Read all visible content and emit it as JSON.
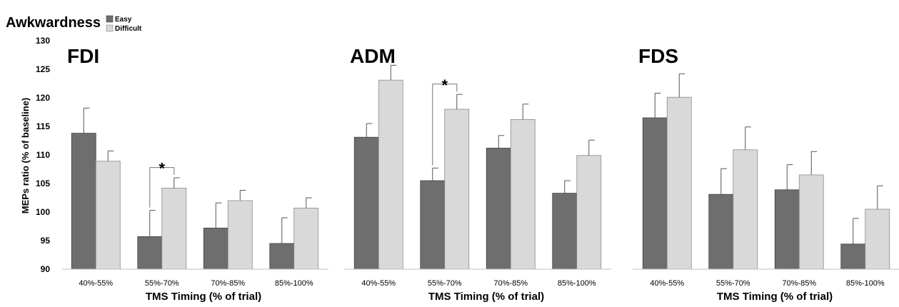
{
  "legend": {
    "title": "Awkwardness",
    "items": [
      {
        "label": "Easy",
        "color": "#6e6e6e"
      },
      {
        "label": "Difficult",
        "color": "#d9d9d9"
      }
    ]
  },
  "chart_data": {
    "type": "bar",
    "ylabel": "MEPs ratio (% of baseline)",
    "ylim": [
      90,
      130
    ],
    "yticks": [
      90,
      95,
      100,
      105,
      110,
      115,
      120,
      125,
      130
    ],
    "xlabel": "TMS Timing (% of trial)",
    "categories": [
      "40%-55%",
      "55%-70%",
      "70%-85%",
      "85%-100%"
    ],
    "significance_marker": "*",
    "panels": [
      {
        "title": "FDI",
        "series": [
          {
            "name": "Easy",
            "values": [
              113.8,
              95.7,
              97.2,
              94.5
            ],
            "errors": [
              4.4,
              4.6,
              4.4,
              4.5
            ]
          },
          {
            "name": "Difficult",
            "values": [
              108.9,
              104.2,
              102.0,
              100.7
            ],
            "errors": [
              1.8,
              1.8,
              1.8,
              1.8
            ]
          }
        ],
        "significant_categories": [
          1
        ]
      },
      {
        "title": "ADM",
        "series": [
          {
            "name": "Easy",
            "values": [
              113.1,
              105.5,
              111.2,
              103.3
            ],
            "errors": [
              2.4,
              2.2,
              2.2,
              2.2
            ]
          },
          {
            "name": "Difficult",
            "values": [
              123.1,
              118.0,
              116.2,
              109.9
            ],
            "errors": [
              2.6,
              2.6,
              2.7,
              2.7
            ]
          }
        ],
        "significant_categories": [
          1
        ]
      },
      {
        "title": "FDS",
        "series": [
          {
            "name": "Easy",
            "values": [
              116.5,
              103.1,
              103.9,
              94.4
            ],
            "errors": [
              4.3,
              4.5,
              4.4,
              4.5
            ]
          },
          {
            "name": "Difficult",
            "values": [
              120.1,
              110.9,
              106.5,
              100.5
            ],
            "errors": [
              4.1,
              4.0,
              4.1,
              4.1
            ]
          }
        ],
        "significant_categories": []
      }
    ]
  }
}
